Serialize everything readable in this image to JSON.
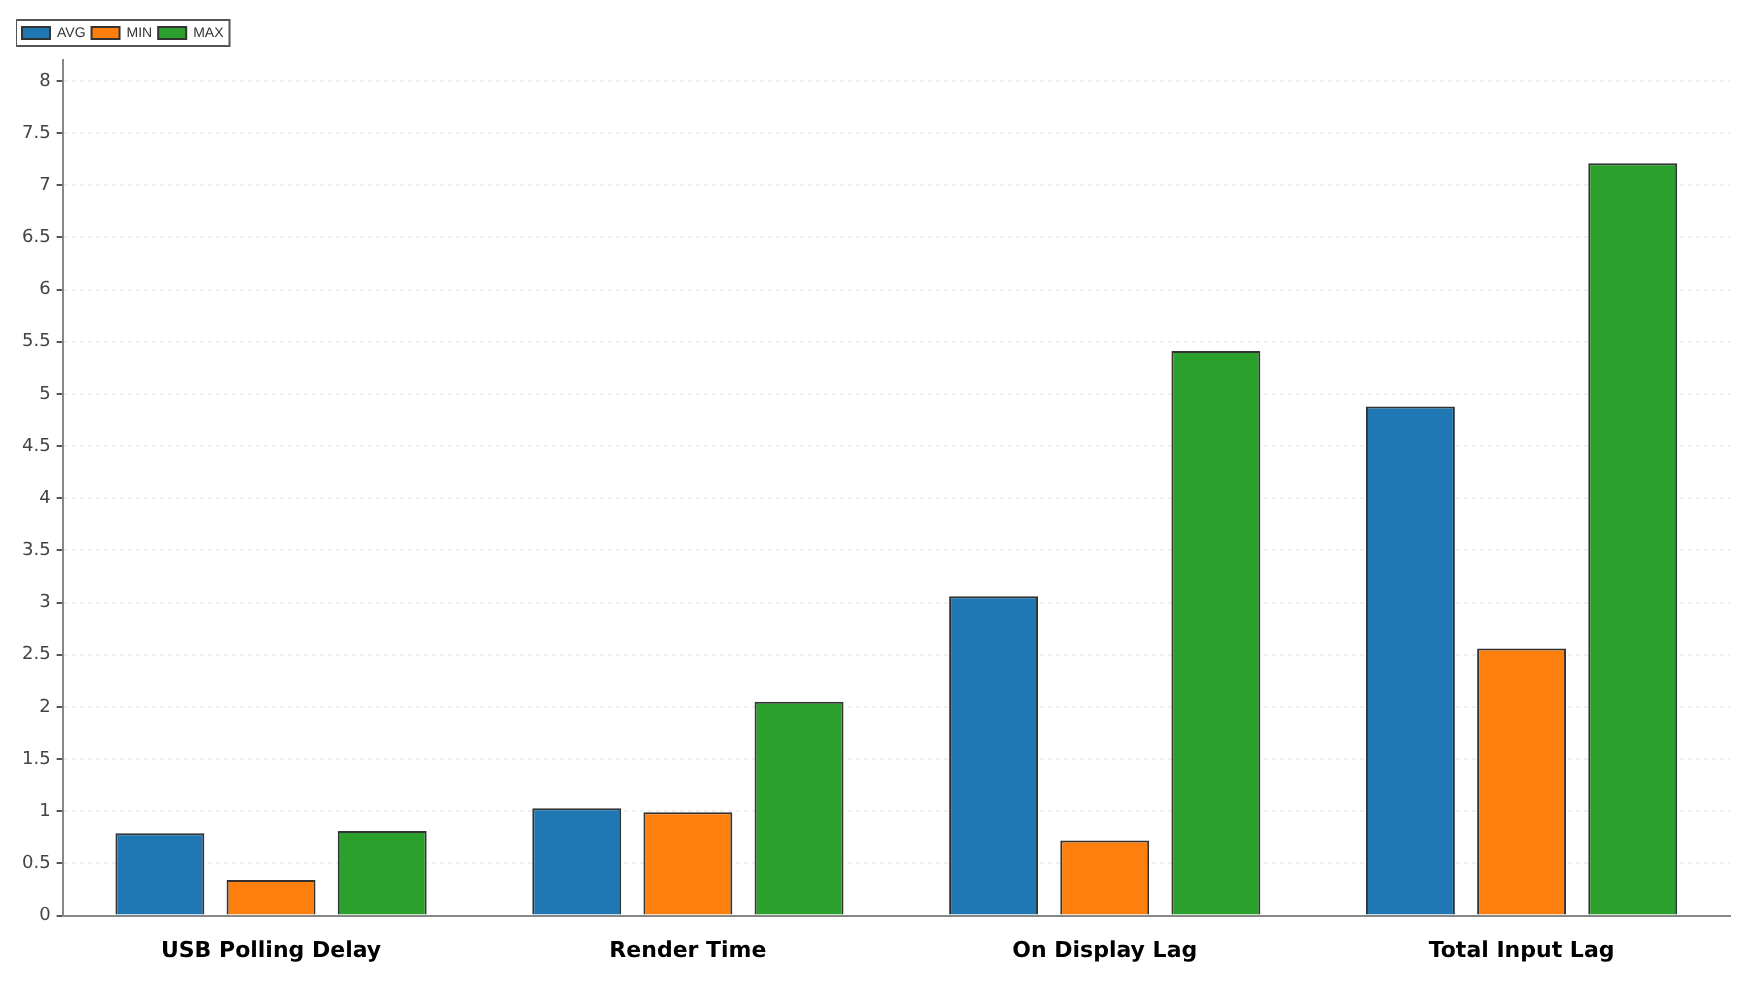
{
  "chart_data": {
    "type": "bar",
    "categories": [
      "USB Polling Delay",
      "Render Time",
      "On Display Lag",
      "Total Input Lag"
    ],
    "series": [
      {
        "name": "AVG",
        "color": "#1f77b4",
        "values": [
          0.79,
          1.03,
          3.06,
          4.88
        ]
      },
      {
        "name": "MIN",
        "color": "#ff7f0e",
        "values": [
          0.34,
          0.99,
          0.72,
          2.56
        ]
      },
      {
        "name": "MAX",
        "color": "#2ca02c",
        "values": [
          0.81,
          2.05,
          5.41,
          7.21
        ]
      }
    ],
    "ylim": [
      0,
      8.2
    ],
    "yticks": [
      0,
      0.5,
      1,
      1.5,
      2,
      2.5,
      3,
      3.5,
      4,
      4.5,
      5,
      5.5,
      6,
      6.5,
      7,
      7.5,
      8
    ],
    "grid": "y",
    "legend": "top left"
  }
}
